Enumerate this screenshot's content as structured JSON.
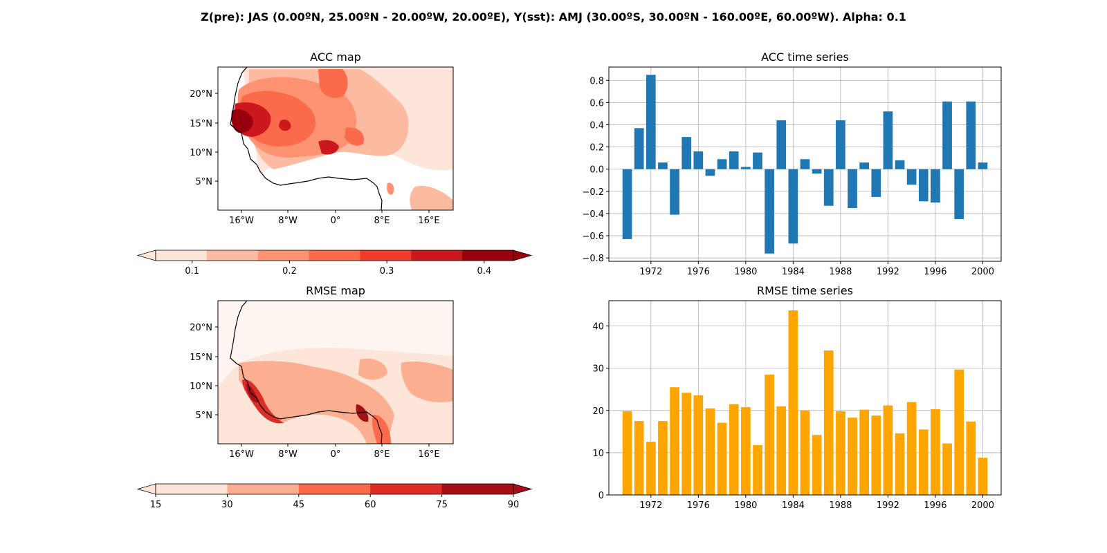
{
  "figure": {
    "suptitle": "Z(pre): JAS (0.00ºN, 25.00ºN - 20.00ºW, 20.00ºE), Y(sst): AMJ (30.00ºS, 30.00ºN - 160.00ºE, 60.00ºW). Alpha: 0.1"
  },
  "maps": {
    "acc": {
      "title": "ACC map",
      "lat_ticks": [
        "20°N",
        "15°N",
        "10°N",
        "5°N"
      ],
      "lon_ticks": [
        "16°W",
        "8°W",
        "0°",
        "8°E",
        "16°E"
      ],
      "colorbar": {
        "ticks": [
          "0.1",
          "0.2",
          "0.3",
          "0.4"
        ],
        "levels": [
          0.05,
          0.1,
          0.15,
          0.2,
          0.25,
          0.3,
          0.35,
          0.4
        ],
        "colors": [
          "#fee5d9",
          "#fcbba1",
          "#fc9272",
          "#fb6a4a",
          "#ef3b2c",
          "#cb181d",
          "#99000d"
        ]
      }
    },
    "rmse": {
      "title": "RMSE map",
      "lat_ticks": [
        "20°N",
        "15°N",
        "10°N",
        "5°N"
      ],
      "lon_ticks": [
        "16°W",
        "8°W",
        "0°",
        "8°E",
        "16°E"
      ],
      "colorbar": {
        "ticks": [
          "15",
          "30",
          "45",
          "60",
          "75",
          "90"
        ],
        "levels": [
          15,
          30,
          45,
          60,
          75,
          90
        ],
        "colors": [
          "#fee5d9",
          "#fcae91",
          "#fb6a4a",
          "#de2d26",
          "#a50f15"
        ]
      }
    }
  },
  "chart_data": [
    {
      "type": "bar",
      "title": "ACC time series",
      "xlabel": "",
      "ylabel": "",
      "color": "#1f77b4",
      "x": [
        1970,
        1971,
        1972,
        1973,
        1974,
        1975,
        1976,
        1977,
        1978,
        1979,
        1980,
        1981,
        1982,
        1983,
        1984,
        1985,
        1986,
        1987,
        1988,
        1989,
        1990,
        1991,
        1992,
        1993,
        1994,
        1995,
        1996,
        1997,
        1998,
        1999,
        2000
      ],
      "values": [
        -0.63,
        0.37,
        0.85,
        0.06,
        -0.41,
        0.29,
        0.16,
        -0.06,
        0.09,
        0.16,
        0.02,
        0.15,
        -0.76,
        0.44,
        -0.67,
        0.09,
        -0.04,
        -0.33,
        0.44,
        -0.35,
        0.06,
        -0.25,
        0.52,
        0.08,
        -0.14,
        -0.29,
        -0.3,
        0.61,
        -0.45,
        0.61,
        0.06
      ],
      "xticks": [
        1972,
        1976,
        1980,
        1984,
        1988,
        1992,
        1996,
        2000
      ],
      "yticks": [
        -0.8,
        -0.6,
        -0.4,
        -0.2,
        0.0,
        0.2,
        0.4,
        0.6,
        0.8
      ],
      "ytick_labels": [
        "−0.8",
        "−0.6",
        "−0.4",
        "−0.2",
        "0.0",
        "0.2",
        "0.4",
        "0.6",
        "0.8"
      ],
      "xlim": [
        1968.45,
        2001.55
      ],
      "ylim": [
        -0.83,
        0.92
      ],
      "grid": true
    },
    {
      "type": "bar",
      "title": "RMSE time series",
      "xlabel": "",
      "ylabel": "",
      "color": "#ffa500",
      "x": [
        1970,
        1971,
        1972,
        1973,
        1974,
        1975,
        1976,
        1977,
        1978,
        1979,
        1980,
        1981,
        1982,
        1983,
        1984,
        1985,
        1986,
        1987,
        1988,
        1989,
        1990,
        1991,
        1992,
        1993,
        1994,
        1995,
        1996,
        1997,
        1998,
        1999,
        2000
      ],
      "values": [
        19.8,
        17.5,
        12.6,
        17.5,
        25.5,
        24.2,
        23.6,
        20.5,
        17.1,
        21.5,
        20.8,
        11.8,
        28.5,
        21.0,
        43.7,
        20.0,
        14.2,
        34.2,
        19.8,
        18.3,
        20.2,
        18.8,
        21.2,
        14.6,
        22.0,
        15.5,
        20.3,
        12.2,
        29.7,
        17.4,
        8.8
      ],
      "xticks": [
        1972,
        1976,
        1980,
        1984,
        1988,
        1992,
        1996,
        2000
      ],
      "yticks": [
        0,
        10,
        20,
        30,
        40
      ],
      "ytick_labels": [
        "0",
        "10",
        "20",
        "30",
        "40"
      ],
      "xlim": [
        1968.45,
        2001.55
      ],
      "ylim": [
        0,
        46
      ],
      "grid": true
    }
  ]
}
